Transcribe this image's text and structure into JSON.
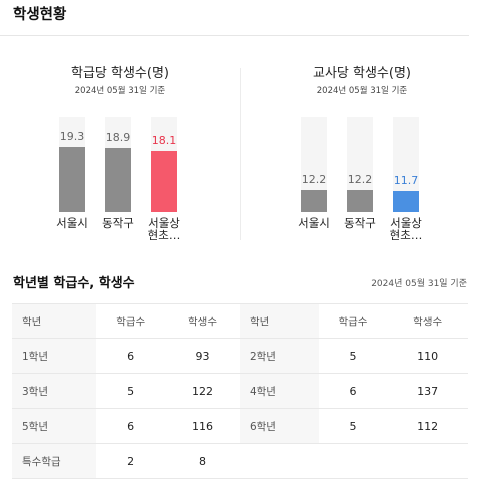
{
  "page_title": "학생현황",
  "panels": [
    {
      "title": "학급당 학생수(명)",
      "date": "2024년 05월 31일 기준",
      "max": 28,
      "bars": [
        {
          "label": "서울시",
          "value": 19.3,
          "display": "19.3",
          "highlight": false
        },
        {
          "label": "동작구",
          "value": 18.9,
          "display": "18.9",
          "highlight": false
        },
        {
          "label": "서울상\n현초…",
          "value": 18.1,
          "display": "18.1",
          "highlight": true
        }
      ],
      "colors": {
        "normal": "#8c8c8c",
        "highlight": "#f5596b",
        "highlight_text": "#e8344b"
      }
    },
    {
      "title": "교사당 학생수(명)",
      "date": "2024년 05월 31일 기준",
      "max": 52,
      "bars": [
        {
          "label": "서울시",
          "value": 12.2,
          "display": "12.2",
          "highlight": false
        },
        {
          "label": "동작구",
          "value": 12.2,
          "display": "12.2",
          "highlight": false
        },
        {
          "label": "서울상\n현초…",
          "value": 11.7,
          "display": "11.7",
          "highlight": true
        }
      ],
      "colors": {
        "normal": "#8c8c8c",
        "highlight": "#4a90e2",
        "highlight_text": "#3a7fd6"
      }
    }
  ],
  "table_section": {
    "title": "학년별 학급수, 학생수",
    "date": "2024년 05월 31일 기준",
    "headers": [
      "학년",
      "학급수",
      "학생수",
      "학년",
      "학급수",
      "학생수"
    ],
    "rows": [
      [
        "1학년",
        "6",
        "93",
        "2학년",
        "5",
        "110"
      ],
      [
        "3학년",
        "5",
        "122",
        "4학년",
        "6",
        "137"
      ],
      [
        "5학년",
        "6",
        "116",
        "6학년",
        "5",
        "112"
      ],
      [
        "특수학급",
        "2",
        "8",
        "",
        "",
        ""
      ]
    ]
  }
}
